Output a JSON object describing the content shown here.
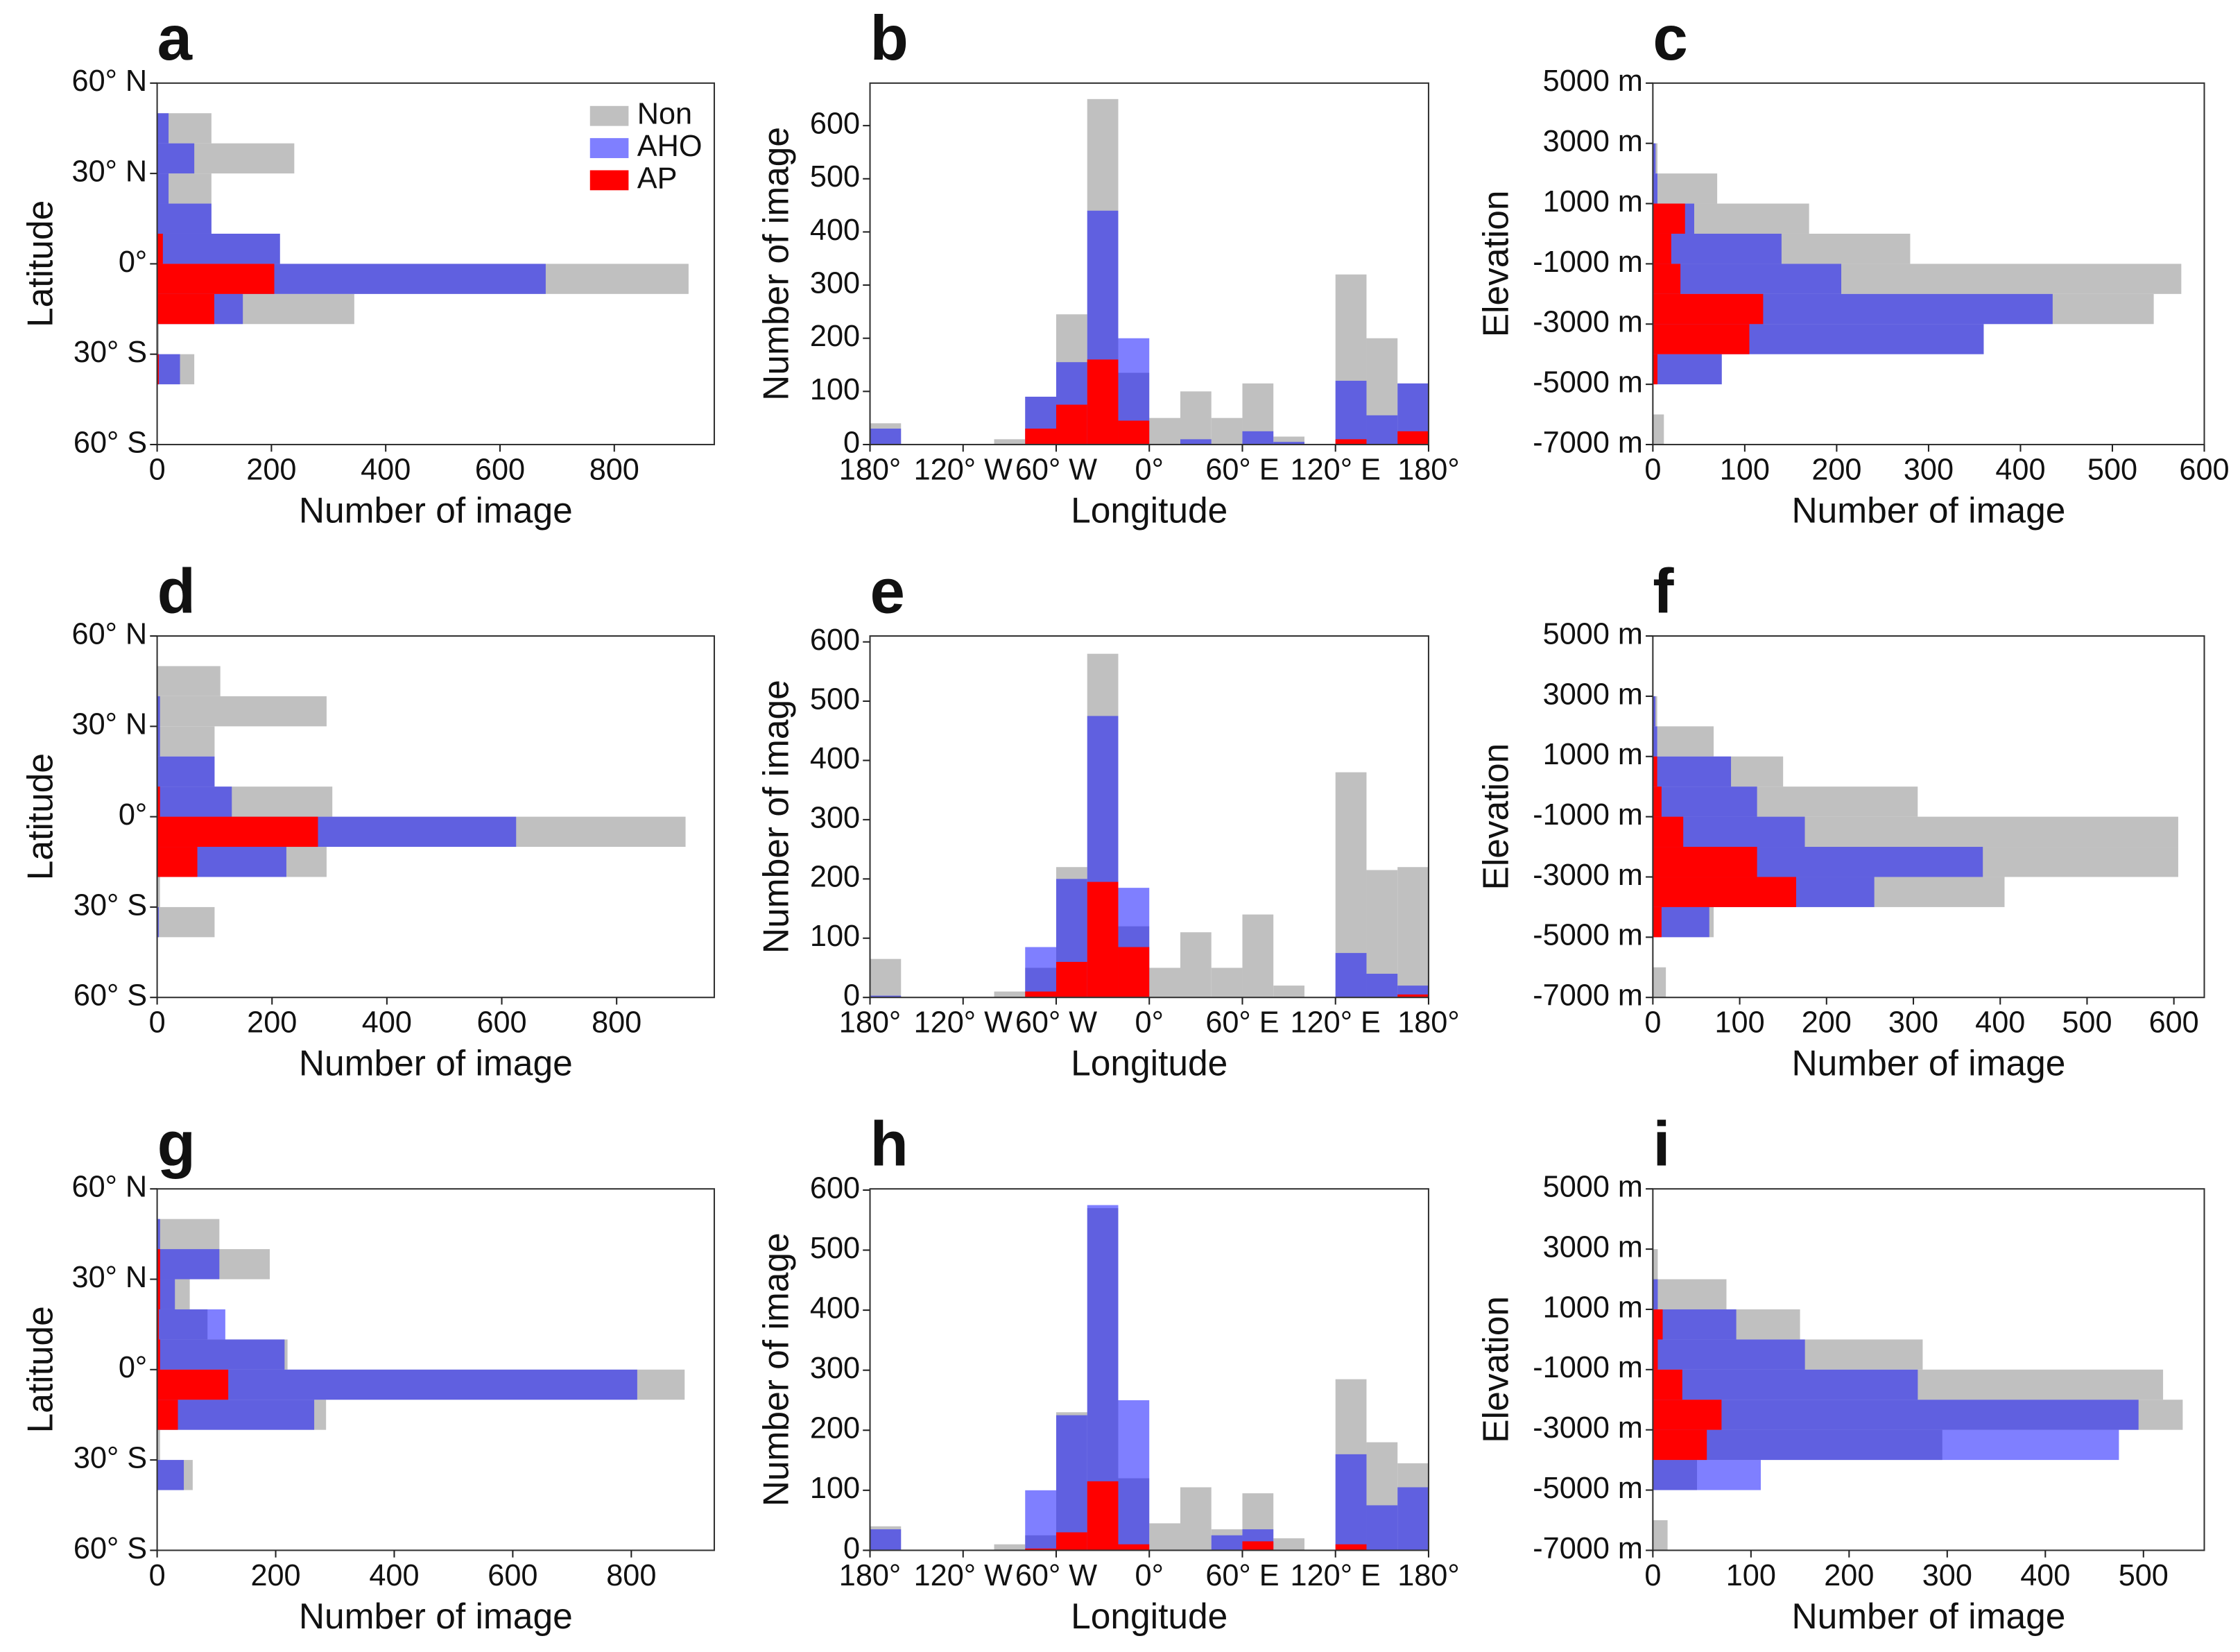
{
  "chart_data": [
    {
      "type": "histogram",
      "orientation": "horizontal",
      "label": "a",
      "xlabel": "Number of image",
      "ylabel": "Latitude",
      "legend": "upper right",
      "bins": [
        -60,
        -50,
        -40,
        -30,
        -20,
        -10,
        0,
        10,
        20,
        30,
        40,
        50,
        60
      ],
      "series": [
        {
          "name": "Non",
          "color": "#c0c0c0",
          "values": [
            0,
            0,
            65,
            3,
            345,
            930,
            215,
            95,
            95,
            240,
            95,
            0
          ]
        },
        {
          "name": "AHO",
          "color": "#0000ff",
          "values": [
            0,
            0,
            40,
            0,
            150,
            680,
            215,
            95,
            20,
            65,
            20,
            0
          ]
        },
        {
          "name": "AP",
          "color": "#ff0000",
          "values": [
            0,
            0,
            3,
            0,
            100,
            205,
            10,
            0,
            0,
            0,
            0,
            0
          ]
        }
      ],
      "xlim": [
        0,
        975
      ],
      "xticks": [
        0,
        200,
        400,
        600,
        800
      ],
      "ylim": [
        -60,
        60
      ],
      "yticks": [
        {
          "value": -60,
          "label": "60° S"
        },
        {
          "value": -30,
          "label": "30° S"
        },
        {
          "value": 0,
          "label": "0°"
        },
        {
          "value": 30,
          "label": "30° N"
        },
        {
          "value": 60,
          "label": "60° N"
        }
      ]
    },
    {
      "type": "histogram",
      "orientation": "vertical",
      "label": "b",
      "xlabel": "Longitude",
      "ylabel": "Number of image",
      "bins": [
        -180,
        -160,
        -140,
        -120,
        -100,
        -80,
        -60,
        -40,
        -20,
        0,
        20,
        40,
        60,
        80,
        100,
        120,
        140,
        160,
        180
      ],
      "series": [
        {
          "color": "#c0c0c0",
          "values": [
            40,
            0,
            0,
            0,
            10,
            90,
            245,
            650,
            135,
            50,
            100,
            50,
            115,
            15,
            0,
            320,
            200,
            115
          ]
        },
        {
          "color": "#0000ff",
          "values": [
            30,
            0,
            0,
            0,
            0,
            90,
            155,
            440,
            200,
            0,
            10,
            0,
            25,
            5,
            0,
            120,
            55,
            115
          ]
        },
        {
          "color": "#ff0000",
          "values": [
            0,
            0,
            0,
            0,
            0,
            30,
            75,
            160,
            45,
            0,
            0,
            0,
            0,
            0,
            0,
            10,
            0,
            25
          ]
        }
      ],
      "xlim": [
        -180,
        180
      ],
      "xticks": [
        {
          "value": -180,
          "label": "180°"
        },
        {
          "value": -120,
          "label": "120° W"
        },
        {
          "value": -60,
          "label": "60° W"
        },
        {
          "value": 0,
          "label": "0°"
        },
        {
          "value": 60,
          "label": "60° E"
        },
        {
          "value": 120,
          "label": "120° E"
        },
        {
          "value": 180,
          "label": "180°"
        }
      ],
      "ylim": [
        0,
        680
      ],
      "yticks": [
        0,
        100,
        200,
        300,
        400,
        500,
        600
      ]
    },
    {
      "type": "histogram",
      "orientation": "horizontal",
      "label": "c",
      "xlabel": "Number of image",
      "ylabel": "Elevation",
      "bins": [
        -7000,
        -6000,
        -5000,
        -4000,
        -3000,
        -2000,
        -1000,
        0,
        1000,
        2000,
        3000,
        4000,
        5000
      ],
      "series": [
        {
          "color": "#c0c0c0",
          "values": [
            12,
            0,
            75,
            360,
            545,
            575,
            280,
            170,
            70,
            5,
            0,
            0
          ]
        },
        {
          "color": "#0000ff",
          "values": [
            0,
            0,
            75,
            360,
            435,
            205,
            140,
            45,
            5,
            3,
            0,
            0
          ]
        },
        {
          "color": "#ff0000",
          "values": [
            0,
            0,
            5,
            105,
            120,
            30,
            20,
            35,
            0,
            0,
            0,
            0
          ]
        }
      ],
      "xlim": [
        0,
        600
      ],
      "xticks": [
        0,
        100,
        200,
        300,
        400,
        500,
        600
      ],
      "ylim": [
        -7000,
        5000
      ],
      "yticks": [
        {
          "value": -7000,
          "label": "-7000 m"
        },
        {
          "value": -5000,
          "label": "-5000 m"
        },
        {
          "value": -3000,
          "label": "-3000 m"
        },
        {
          "value": -1000,
          "label": "-1000 m"
        },
        {
          "value": 1000,
          "label": "1000 m"
        },
        {
          "value": 3000,
          "label": "3000 m"
        },
        {
          "value": 5000,
          "label": "5000 m"
        }
      ]
    },
    {
      "type": "histogram",
      "orientation": "horizontal",
      "label": "d",
      "xlabel": "Number of image",
      "ylabel": "Latitude",
      "bins": [
        -60,
        -50,
        -40,
        -30,
        -20,
        -10,
        0,
        10,
        20,
        30,
        40,
        50,
        60
      ],
      "series": [
        {
          "color": "#c0c0c0",
          "values": [
            0,
            0,
            100,
            5,
            295,
            920,
            305,
            100,
            100,
            295,
            110,
            0
          ]
        },
        {
          "color": "#0000ff",
          "values": [
            0,
            0,
            3,
            0,
            225,
            625,
            130,
            100,
            5,
            5,
            0,
            0
          ]
        },
        {
          "color": "#ff0000",
          "values": [
            0,
            0,
            0,
            0,
            70,
            280,
            5,
            0,
            0,
            0,
            0,
            0
          ]
        }
      ],
      "xlim": [
        0,
        970
      ],
      "xticks": [
        0,
        200,
        400,
        600,
        800
      ],
      "ylim": [
        -60,
        60
      ],
      "yticks": [
        {
          "value": -60,
          "label": "60° S"
        },
        {
          "value": -30,
          "label": "30° S"
        },
        {
          "value": 0,
          "label": "0°"
        },
        {
          "value": 30,
          "label": "30° N"
        },
        {
          "value": 60,
          "label": "60° N"
        }
      ]
    },
    {
      "type": "histogram",
      "orientation": "vertical",
      "label": "e",
      "xlabel": "Longitude",
      "ylabel": "Number of image",
      "bins": [
        -180,
        -160,
        -140,
        -120,
        -100,
        -80,
        -60,
        -40,
        -20,
        0,
        20,
        40,
        60,
        80,
        100,
        120,
        140,
        160,
        180
      ],
      "series": [
        {
          "color": "#c0c0c0",
          "values": [
            65,
            0,
            0,
            0,
            10,
            50,
            220,
            580,
            120,
            50,
            110,
            50,
            140,
            20,
            0,
            380,
            215,
            220
          ]
        },
        {
          "color": "#0000ff",
          "values": [
            3,
            0,
            0,
            0,
            0,
            85,
            200,
            475,
            185,
            0,
            0,
            0,
            0,
            0,
            0,
            75,
            40,
            20
          ]
        },
        {
          "color": "#ff0000",
          "values": [
            0,
            0,
            0,
            0,
            0,
            10,
            60,
            195,
            85,
            0,
            0,
            0,
            0,
            0,
            0,
            0,
            0,
            5
          ]
        }
      ],
      "xlim": [
        -180,
        180
      ],
      "xticks": [
        {
          "value": -180,
          "label": "180°"
        },
        {
          "value": -120,
          "label": "120° W"
        },
        {
          "value": -60,
          "label": "60° W"
        },
        {
          "value": 0,
          "label": "0°"
        },
        {
          "value": 60,
          "label": "60° E"
        },
        {
          "value": 120,
          "label": "120° E"
        },
        {
          "value": 180,
          "label": "180°"
        }
      ],
      "ylim": [
        0,
        610
      ],
      "yticks": [
        0,
        100,
        200,
        300,
        400,
        500,
        600
      ]
    },
    {
      "type": "histogram",
      "orientation": "horizontal",
      "label": "f",
      "xlabel": "Number of image",
      "ylabel": "Elevation",
      "bins": [
        -7000,
        -6000,
        -5000,
        -4000,
        -3000,
        -2000,
        -1000,
        0,
        1000,
        2000,
        3000,
        4000,
        5000
      ],
      "series": [
        {
          "color": "#c0c0c0",
          "values": [
            15,
            0,
            70,
            405,
            605,
            605,
            305,
            150,
            70,
            5,
            0,
            0
          ]
        },
        {
          "color": "#0000ff",
          "values": [
            0,
            0,
            65,
            255,
            380,
            175,
            120,
            90,
            5,
            3,
            0,
            0
          ]
        },
        {
          "color": "#ff0000",
          "values": [
            0,
            0,
            10,
            165,
            120,
            35,
            10,
            5,
            0,
            0,
            0,
            0
          ]
        }
      ],
      "xlim": [
        0,
        635
      ],
      "xticks": [
        0,
        100,
        200,
        300,
        400,
        500,
        600
      ],
      "ylim": [
        -7000,
        5000
      ],
      "yticks": [
        {
          "value": -7000,
          "label": "-7000 m"
        },
        {
          "value": -5000,
          "label": "-5000 m"
        },
        {
          "value": -3000,
          "label": "-3000 m"
        },
        {
          "value": -1000,
          "label": "-1000 m"
        },
        {
          "value": 1000,
          "label": "1000 m"
        },
        {
          "value": 3000,
          "label": "3000 m"
        },
        {
          "value": 5000,
          "label": "5000 m"
        }
      ]
    },
    {
      "type": "histogram",
      "orientation": "horizontal",
      "label": "g",
      "xlabel": "Number of image",
      "ylabel": "Latitude",
      "bins": [
        -60,
        -50,
        -40,
        -30,
        -20,
        -10,
        0,
        10,
        20,
        30,
        40,
        50,
        60
      ],
      "series": [
        {
          "color": "#c0c0c0",
          "values": [
            0,
            0,
            60,
            5,
            285,
            890,
            220,
            85,
            55,
            190,
            105,
            0
          ]
        },
        {
          "color": "#0000ff",
          "values": [
            0,
            0,
            45,
            0,
            265,
            810,
            215,
            115,
            30,
            105,
            5,
            0
          ]
        },
        {
          "color": "#ff0000",
          "values": [
            0,
            0,
            0,
            0,
            35,
            120,
            5,
            3,
            5,
            5,
            0,
            0
          ]
        }
      ],
      "xlim": [
        0,
        940
      ],
      "xticks": [
        0,
        200,
        400,
        600,
        800
      ],
      "ylim": [
        -60,
        60
      ],
      "yticks": [
        {
          "value": -60,
          "label": "60° S"
        },
        {
          "value": -30,
          "label": "30° S"
        },
        {
          "value": 0,
          "label": "0°"
        },
        {
          "value": 30,
          "label": "30° N"
        },
        {
          "value": 60,
          "label": "60° N"
        }
      ]
    },
    {
      "type": "histogram",
      "orientation": "vertical",
      "label": "h",
      "xlabel": "Longitude",
      "ylabel": "Number of image",
      "bins": [
        -180,
        -160,
        -140,
        -120,
        -100,
        -80,
        -60,
        -40,
        -20,
        0,
        20,
        40,
        60,
        80,
        100,
        120,
        140,
        160,
        180
      ],
      "series": [
        {
          "color": "#c0c0c0",
          "values": [
            40,
            0,
            0,
            0,
            10,
            25,
            230,
            570,
            120,
            45,
            105,
            35,
            95,
            20,
            0,
            285,
            180,
            145
          ]
        },
        {
          "color": "#0000ff",
          "values": [
            35,
            0,
            0,
            0,
            0,
            100,
            225,
            575,
            250,
            0,
            0,
            25,
            35,
            0,
            0,
            160,
            75,
            105
          ]
        },
        {
          "color": "#ff0000",
          "values": [
            0,
            0,
            0,
            0,
            0,
            3,
            30,
            115,
            10,
            0,
            0,
            0,
            15,
            0,
            0,
            10,
            0,
            0
          ]
        }
      ],
      "xlim": [
        -180,
        180
      ],
      "xticks": [
        {
          "value": -180,
          "label": "180°"
        },
        {
          "value": -120,
          "label": "120° W"
        },
        {
          "value": -60,
          "label": "60° W"
        },
        {
          "value": 0,
          "label": "0°"
        },
        {
          "value": 60,
          "label": "60° E"
        },
        {
          "value": 120,
          "label": "120° E"
        },
        {
          "value": 180,
          "label": "180°"
        }
      ],
      "ylim": [
        0,
        602
      ],
      "yticks": [
        0,
        100,
        200,
        300,
        400,
        500,
        600
      ]
    },
    {
      "type": "histogram",
      "orientation": "horizontal",
      "label": "i",
      "xlabel": "Number of image",
      "ylabel": "Elevation",
      "bins": [
        -7000,
        -6000,
        -5000,
        -4000,
        -3000,
        -2000,
        -1000,
        0,
        1000,
        2000,
        3000,
        4000,
        5000
      ],
      "series": [
        {
          "color": "#c0c0c0",
          "values": [
            15,
            0,
            45,
            295,
            540,
            520,
            275,
            150,
            75,
            5,
            0,
            0
          ]
        },
        {
          "color": "#0000ff",
          "values": [
            0,
            0,
            110,
            475,
            495,
            270,
            155,
            85,
            5,
            0,
            0,
            0
          ]
        },
        {
          "color": "#ff0000",
          "values": [
            0,
            0,
            0,
            55,
            70,
            30,
            5,
            10,
            0,
            0,
            0,
            0
          ]
        }
      ],
      "xlim": [
        0,
        562
      ],
      "xticks": [
        0,
        100,
        200,
        300,
        400,
        500
      ],
      "ylim": [
        -7000,
        5000
      ],
      "yticks": [
        {
          "value": -7000,
          "label": "-7000 m"
        },
        {
          "value": -5000,
          "label": "-5000 m"
        },
        {
          "value": -3000,
          "label": "-3000 m"
        },
        {
          "value": -1000,
          "label": "-1000 m"
        },
        {
          "value": 1000,
          "label": "1000 m"
        },
        {
          "value": 3000,
          "label": "3000 m"
        },
        {
          "value": 5000,
          "label": "5000 m"
        }
      ]
    }
  ]
}
